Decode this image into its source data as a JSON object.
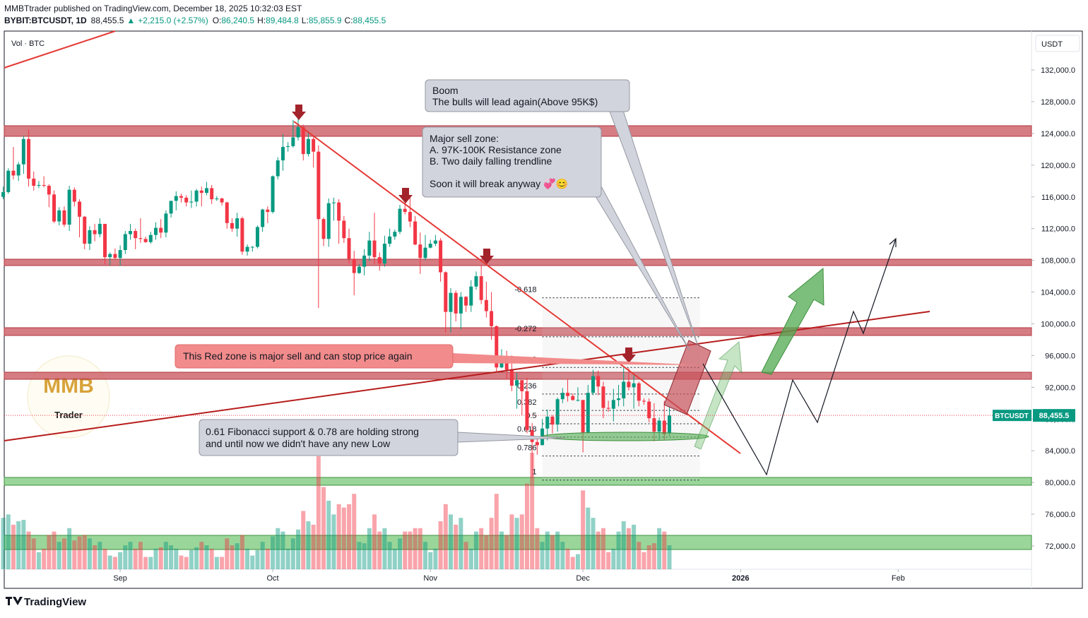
{
  "header": {
    "publisher": "MMBTtrader published on TradingView.com, December 18, 2025 10:32:03 EST",
    "symbol": "BYBIT:BTCUSDT, 1D",
    "last": "88,455.5",
    "arrow": "▲",
    "change": "+2,215.0 (+2.57%)",
    "open_label": "O:",
    "open": "86,240.5",
    "high_label": "H:",
    "high": "89,484.8",
    "low_label": "L:",
    "low": "85,855.9",
    "close_label": "C:",
    "close": "88,455.5"
  },
  "volume_label": "Vol · BTC",
  "currency": "USDT",
  "logo": {
    "top": "MMB",
    "bottom": "Trader"
  },
  "brand": "TradingView",
  "annotations": {
    "boom": [
      "Boom",
      "The bulls will lead again(Above 95K$)"
    ],
    "sell_zone": [
      "Major sell zone:",
      "A. 97K-100K Resistance zone",
      "B. Two daily falling trendline",
      "Soon it will break anyway 💞😊"
    ],
    "red_zone": "This Red zone is major sell and can stop price again",
    "fib_support": [
      "0.61 Fibonacci support & 0.78 are holding strong",
      "and until now we didn't have any new Low"
    ]
  },
  "chart_data": {
    "type": "candlestick",
    "symbol_tag": "BTCUSDT",
    "last_price": {
      "value": 88455.5,
      "label": "88,455.5"
    },
    "up_color": "#089981",
    "down_color": "#f23645",
    "grid": false,
    "xlim": [
      0.2,
      202.2
    ],
    "xticks": [
      {
        "value": 23,
        "label": "Sep"
      },
      {
        "value": 53,
        "label": "Oct"
      },
      {
        "value": 84,
        "label": "Nov"
      },
      {
        "value": 114,
        "label": "Dec"
      },
      {
        "value": 145,
        "label": "2026"
      },
      {
        "value": 176,
        "label": "Feb"
      }
    ],
    "ylim": [
      69060,
      136900
    ],
    "yticks": [
      {
        "value": 72000,
        "label": "72,000.0"
      },
      {
        "value": 76000,
        "label": "76,000.0"
      },
      {
        "value": 80000,
        "label": "80,000.0"
      },
      {
        "value": 84000,
        "label": "84,000.0"
      },
      {
        "value": 88000,
        "label": "88,000.0"
      },
      {
        "value": 92000,
        "label": "92,000.0"
      },
      {
        "value": 96000,
        "label": "96,000.0"
      },
      {
        "value": 100000,
        "label": "100,000.0"
      },
      {
        "value": 104000,
        "label": "104,000.0"
      },
      {
        "value": 108000,
        "label": "108,000.0"
      },
      {
        "value": 112000,
        "label": "112,000.0"
      },
      {
        "value": 116000,
        "label": "116,000.0"
      },
      {
        "value": 120000,
        "label": "120,000.0"
      },
      {
        "value": 124000,
        "label": "124,000.0"
      },
      {
        "value": 128000,
        "label": "128,000.0"
      },
      {
        "value": 132000,
        "label": "132,000.0"
      }
    ],
    "fib": {
      "price_0": 94500,
      "price_1": 80300,
      "start": 106,
      "end": 137,
      "levels": [
        -0.618,
        -0.272,
        0,
        0.236,
        0.382,
        0.5,
        0.618,
        0.786,
        1
      ]
    },
    "candles": [
      [
        116000,
        117300,
        115700,
        116600
      ],
      [
        116600,
        119600,
        116400,
        119300
      ],
      [
        119300,
        122300,
        118200,
        118700
      ],
      [
        118700,
        120400,
        118000,
        120100
      ],
      [
        120100,
        123700,
        118900,
        123300
      ],
      [
        123300,
        124500,
        117300,
        118300
      ],
      [
        118300,
        119200,
        116800,
        117400
      ],
      [
        117400,
        118000,
        117100,
        117500
      ],
      [
        117500,
        118600,
        117200,
        117400
      ],
      [
        117400,
        117600,
        114700,
        116300
      ],
      [
        116300,
        116800,
        112700,
        112900
      ],
      [
        112900,
        114700,
        112400,
        114300
      ],
      [
        114300,
        114800,
        112200,
        112500
      ],
      [
        112500,
        117400,
        111700,
        116900
      ],
      [
        116900,
        117200,
        114800,
        115400
      ],
      [
        115400,
        115700,
        110900,
        113500
      ],
      [
        113500,
        113600,
        109400,
        110100
      ],
      [
        110100,
        112300,
        109300,
        111800
      ],
      [
        111800,
        112600,
        110400,
        111300
      ],
      [
        111300,
        113300,
        110900,
        112600
      ],
      [
        112600,
        112600,
        107500,
        108400
      ],
      [
        108400,
        109000,
        107400,
        108800
      ],
      [
        108800,
        109500,
        108100,
        108300
      ],
      [
        108300,
        109900,
        107300,
        109300
      ],
      [
        109300,
        111700,
        108800,
        111300
      ],
      [
        111300,
        112600,
        110600,
        111700
      ],
      [
        111700,
        112000,
        109400,
        110800
      ],
      [
        110800,
        113300,
        110200,
        110700
      ],
      [
        110700,
        111000,
        110200,
        110300
      ],
      [
        110300,
        111600,
        110100,
        111200
      ],
      [
        111200,
        112800,
        110600,
        112100
      ],
      [
        112100,
        113200,
        110800,
        111500
      ],
      [
        111500,
        114300,
        110900,
        113900
      ],
      [
        113900,
        115500,
        113400,
        115500
      ],
      [
        115500,
        116700,
        114300,
        116100
      ],
      [
        116100,
        116400,
        115300,
        115900
      ],
      [
        115900,
        116200,
        114800,
        115300
      ],
      [
        115300,
        116800,
        114600,
        115400
      ],
      [
        115400,
        117000,
        114800,
        116800
      ],
      [
        116800,
        117300,
        114800,
        116500
      ],
      [
        116500,
        117900,
        116200,
        117100
      ],
      [
        117100,
        117500,
        115100,
        115700
      ],
      [
        115700,
        116100,
        115500,
        115800
      ],
      [
        115800,
        115900,
        114900,
        115300
      ],
      [
        115300,
        115400,
        112000,
        112700
      ],
      [
        112700,
        113300,
        111600,
        112000
      ],
      [
        112000,
        114000,
        111000,
        113300
      ],
      [
        113300,
        113500,
        108700,
        109100
      ],
      [
        109100,
        110000,
        108600,
        109700
      ],
      [
        109700,
        109800,
        109100,
        109700
      ],
      [
        109700,
        112400,
        109500,
        112200
      ],
      [
        112200,
        114500,
        111600,
        114400
      ],
      [
        114400,
        114800,
        112700,
        114100
      ],
      [
        114100,
        118700,
        113900,
        118600
      ],
      [
        118600,
        121000,
        118200,
        120600
      ],
      [
        120600,
        123900,
        119300,
        122300
      ],
      [
        122300,
        122900,
        121700,
        122400
      ],
      [
        122400,
        125700,
        122200,
        123500
      ],
      [
        123500,
        126200,
        123100,
        124800
      ],
      [
        124800,
        125100,
        120600,
        121400
      ],
      [
        121400,
        124200,
        121100,
        123300
      ],
      [
        123300,
        123700,
        119700,
        121700
      ],
      [
        121700,
        122500,
        102000,
        113200
      ],
      [
        113200,
        113400,
        109800,
        110700
      ],
      [
        110700,
        115800,
        109700,
        115200
      ],
      [
        115200,
        115900,
        113000,
        115300
      ],
      [
        115300,
        115700,
        110100,
        113000
      ],
      [
        113000,
        113600,
        110200,
        110800
      ],
      [
        110800,
        112000,
        107600,
        108200
      ],
      [
        108200,
        109200,
        103600,
        106400
      ],
      [
        106400,
        107500,
        106300,
        107200
      ],
      [
        107200,
        109400,
        106100,
        108600
      ],
      [
        108600,
        111600,
        107900,
        110500
      ],
      [
        110500,
        114000,
        107500,
        108400
      ],
      [
        108400,
        109000,
        106700,
        107600
      ],
      [
        107600,
        111100,
        107200,
        110100
      ],
      [
        110100,
        112000,
        109700,
        111000
      ],
      [
        111000,
        111900,
        110600,
        111600
      ],
      [
        111600,
        115000,
        111300,
        114500
      ],
      [
        114500,
        116400,
        113800,
        114100
      ],
      [
        114100,
        116000,
        112200,
        112900
      ],
      [
        112900,
        113600,
        109900,
        110000
      ],
      [
        110000,
        111500,
        106300,
        108300
      ],
      [
        108300,
        111200,
        108000,
        109600
      ],
      [
        109600,
        110600,
        109500,
        110100
      ],
      [
        110100,
        111200,
        109800,
        110500
      ],
      [
        110500,
        110800,
        105300,
        106500
      ],
      [
        106500,
        106600,
        98900,
        101500
      ],
      [
        101500,
        104500,
        98900,
        103900
      ],
      [
        103900,
        104200,
        100300,
        101300
      ],
      [
        101300,
        104000,
        99300,
        103400
      ],
      [
        103400,
        103500,
        101500,
        102300
      ],
      [
        102300,
        105500,
        101500,
        104700
      ],
      [
        104700,
        106600,
        104300,
        106000
      ],
      [
        106000,
        107400,
        102500,
        103000
      ],
      [
        103000,
        105300,
        100800,
        101600
      ],
      [
        101600,
        104000,
        98000,
        99700
      ],
      [
        99700,
        99800,
        94000,
        94500
      ],
      [
        94500,
        96800,
        94400,
        95600
      ],
      [
        95600,
        96600,
        93000,
        94200
      ],
      [
        94200,
        96000,
        91500,
        92200
      ],
      [
        92200,
        93800,
        89300,
        92900
      ],
      [
        92900,
        92900,
        88500,
        91500
      ],
      [
        91500,
        93200,
        86200,
        86600
      ],
      [
        86600,
        87500,
        80600,
        85100
      ],
      [
        85100,
        85500,
        83500,
        84700
      ],
      [
        84700,
        88000,
        84700,
        86800
      ],
      [
        86800,
        89200,
        85300,
        88300
      ],
      [
        88300,
        88500,
        86200,
        87300
      ],
      [
        87300,
        90700,
        86400,
        90500
      ],
      [
        90500,
        91900,
        90000,
        91300
      ],
      [
        91300,
        93000,
        90200,
        90900
      ],
      [
        90900,
        91200,
        90300,
        90400
      ],
      [
        90400,
        92000,
        90200,
        90400
      ],
      [
        90400,
        90400,
        83800,
        86300
      ],
      [
        86300,
        92300,
        86200,
        91300
      ],
      [
        91300,
        94200,
        91000,
        93400
      ],
      [
        93400,
        94100,
        91000,
        92100
      ],
      [
        92100,
        92700,
        88100,
        89400
      ],
      [
        89400,
        90300,
        88900,
        89300
      ],
      [
        89300,
        91800,
        87700,
        90400
      ],
      [
        90400,
        92300,
        89600,
        90600
      ],
      [
        90600,
        94600,
        89600,
        92700
      ],
      [
        92700,
        94400,
        91600,
        92000
      ],
      [
        92000,
        93600,
        89300,
        92500
      ],
      [
        92500,
        92700,
        89600,
        90300
      ],
      [
        90300,
        90600,
        89800,
        90200
      ],
      [
        90200,
        90600,
        87600,
        88100
      ],
      [
        88100,
        90000,
        85200,
        86400
      ],
      [
        86400,
        88200,
        85300,
        87800
      ],
      [
        87800,
        90300,
        85400,
        86100
      ],
      [
        86240.5,
        89484.8,
        85855.9,
        88455.5
      ]
    ],
    "volume": [
      75,
      80,
      65,
      70,
      72,
      55,
      45,
      25,
      30,
      50,
      55,
      40,
      45,
      60,
      42,
      48,
      50,
      45,
      35,
      40,
      30,
      20,
      18,
      25,
      35,
      40,
      30,
      40,
      18,
      18,
      30,
      32,
      40,
      35,
      30,
      20,
      18,
      28,
      32,
      40,
      35,
      30,
      18,
      18,
      45,
      35,
      38,
      50,
      30,
      20,
      28,
      40,
      30,
      48,
      60,
      55,
      30,
      45,
      58,
      85,
      70,
      65,
      165,
      120,
      100,
      80,
      95,
      90,
      95,
      110,
      40,
      38,
      60,
      80,
      55,
      60,
      40,
      30,
      45,
      55,
      55,
      60,
      60,
      40,
      25,
      30,
      70,
      95,
      80,
      65,
      75,
      40,
      30,
      55,
      60,
      50,
      75,
      110,
      55,
      50,
      80,
      75,
      80,
      125,
      170,
      60,
      40,
      55,
      50,
      55,
      40,
      30,
      18,
      22,
      115,
      90,
      75,
      55,
      60,
      25,
      30,
      55,
      70,
      60,
      65,
      40,
      25,
      35,
      38,
      60,
      55,
      35
    ]
  }
}
